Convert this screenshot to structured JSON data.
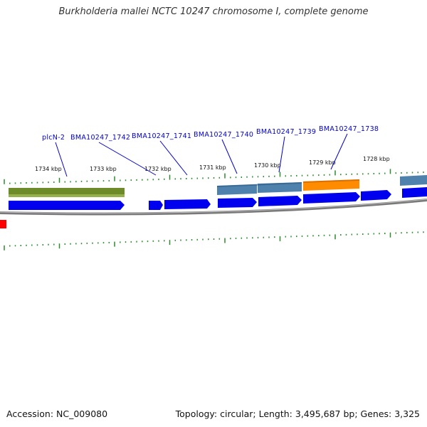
{
  "title": "Burkholderia mallei NCTC 10247 chromosome I, complete genome",
  "footer": {
    "accession": "Accession: NC_009080",
    "topology": "Topology: circular; Length: 3,495,687 bp; Genes: 3,325"
  },
  "colors": {
    "gene_arrow": "#0000ee",
    "feature_green": "#6e8b2a",
    "feature_steelblue": "#4f81ad",
    "feature_orange": "#ff8c00",
    "backbone": "#808080",
    "tick": "#2e8b2e",
    "label": "#0000cc",
    "edge_marker": "#ff0000"
  },
  "map": {
    "kbp_labels": [
      "1734 kbp",
      "1733 kbp",
      "1732 kbp",
      "1731 kbp",
      "1730 kbp",
      "1729 kbp",
      "1728 kbp"
    ],
    "gene_labels": [
      "plcN-2",
      "BMA10247_1742",
      "BMA10247_1741",
      "BMA10247_1740",
      "BMA10247_1739",
      "BMA10247_1738"
    ]
  }
}
